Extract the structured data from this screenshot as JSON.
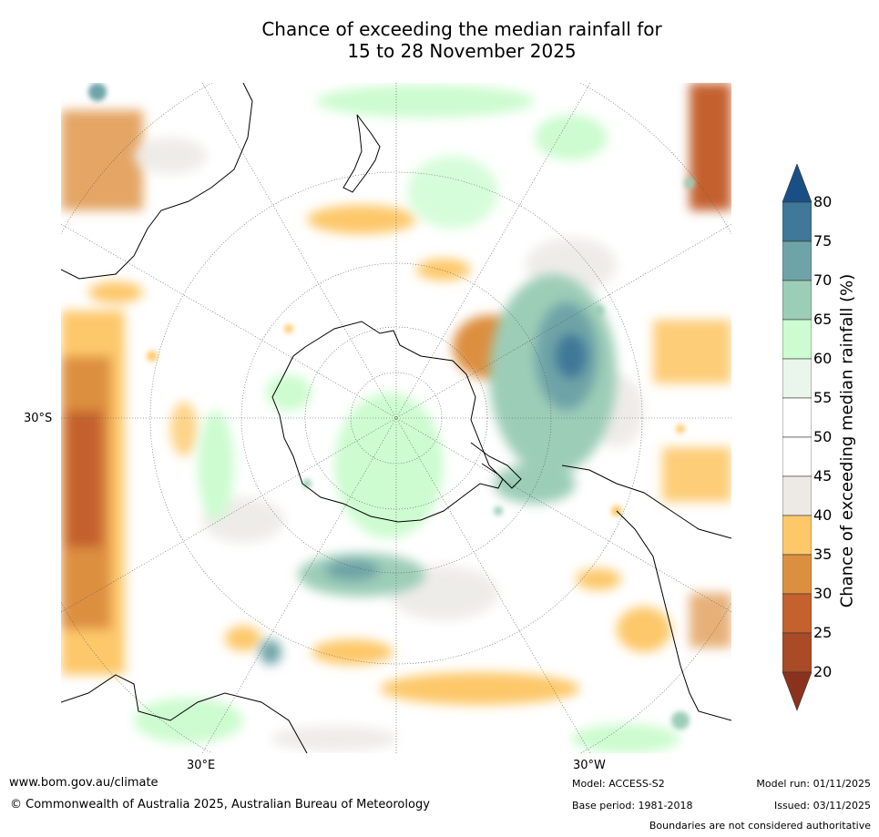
{
  "title_line1": "Chance of exceeding the median rainfall for",
  "title_line2": "15 to 28 November 2025",
  "map": {
    "projection": "south-polar stereographic",
    "lon_labels": [
      "30°E",
      "30°W"
    ],
    "lat_label": "30°S"
  },
  "colorbar": {
    "title": "Chance of exceeding median rainfall (%)",
    "ticks": [
      "80",
      "75",
      "70",
      "65",
      "60",
      "55",
      "50",
      "45",
      "40",
      "35",
      "30",
      "25",
      "20"
    ],
    "colors": [
      "#1a4f86",
      "#3f7898",
      "#6ea4a8",
      "#9ccdb7",
      "#ccfccf",
      "#eaf6ea",
      "#ffffff",
      "#ffffff",
      "#edeae6",
      "#fdc86a",
      "#dd8f40",
      "#c4612e",
      "#a94b27",
      "#8b321f"
    ]
  },
  "footer": {
    "website": "www.bom.gov.au/climate",
    "copyright": "© Commonwealth of Australia 2025, Australian Bureau of Meteorology",
    "model": "Model: ACCESS-S2",
    "base_period": "Base period: 1981-2018",
    "model_run": "Model run: 01/11/2025",
    "issued": "Issued: 03/11/2025",
    "disclaimer": "Boundaries are not considered authoritative"
  }
}
